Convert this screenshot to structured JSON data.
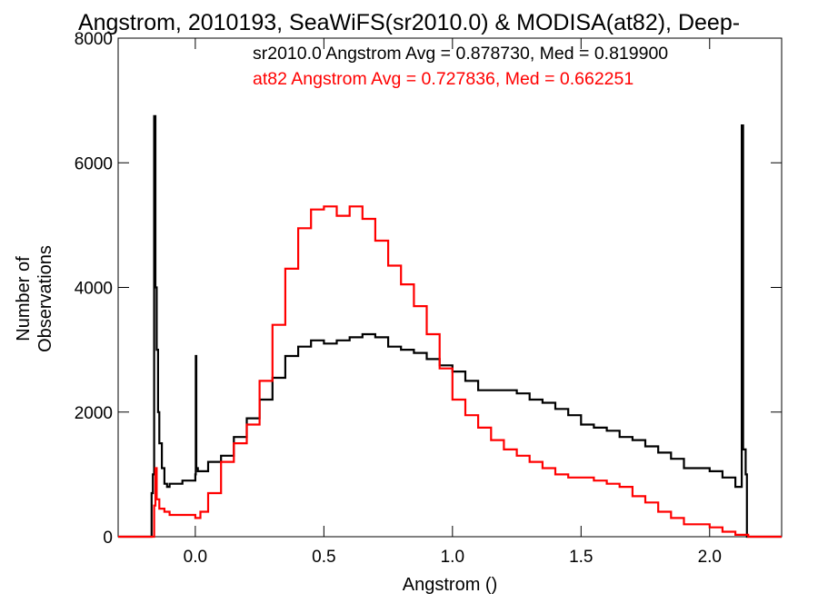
{
  "chart_data": {
    "type": "line",
    "title": "Angstrom, 2010193, SeaWiFS(sr2010.0) & MODISA(at82), Deep-",
    "xlabel": "Angstrom ()",
    "ylabel": "Number of Observations",
    "xlim": [
      -0.3,
      2.28
    ],
    "ylim": [
      0,
      8000
    ],
    "x_ticks": [
      0.0,
      0.5,
      1.0,
      1.5,
      2.0
    ],
    "x_tick_labels": [
      "0.0",
      "0.5",
      "1.0",
      "1.5",
      "2.0"
    ],
    "y_ticks": [
      0,
      2000,
      4000,
      6000,
      8000
    ],
    "y_tick_labels": [
      "0",
      "2000",
      "4000",
      "6000",
      "8000"
    ],
    "grid": false,
    "legend_placement": "top-right",
    "annotations": [
      {
        "text": "sr2010.0 Angstrom Avg = 0.878730, Med = 0.819900",
        "color": "#000000"
      },
      {
        "text": "at82 Angstrom Avg = 0.727836, Med = 0.662251",
        "color": "#ff0000"
      }
    ],
    "series": [
      {
        "color": "#000000",
        "x": [
          -0.3,
          -0.18,
          -0.17,
          -0.165,
          -0.16,
          -0.155,
          -0.15,
          -0.145,
          -0.14,
          -0.13,
          -0.12,
          -0.11,
          -0.1,
          -0.05,
          0.0,
          0.002,
          0.004,
          0.01,
          0.05,
          0.1,
          0.15,
          0.2,
          0.25,
          0.3,
          0.35,
          0.4,
          0.45,
          0.5,
          0.55,
          0.6,
          0.65,
          0.7,
          0.75,
          0.8,
          0.85,
          0.9,
          0.95,
          1.0,
          1.05,
          1.1,
          1.15,
          1.2,
          1.25,
          1.3,
          1.35,
          1.4,
          1.45,
          1.5,
          1.55,
          1.6,
          1.65,
          1.7,
          1.75,
          1.8,
          1.85,
          1.9,
          1.95,
          2.0,
          2.05,
          2.1,
          2.12,
          2.125,
          2.13,
          2.14,
          2.145,
          2.15,
          2.28
        ],
        "y": [
          0,
          0,
          700,
          1000,
          6750,
          4000,
          3000,
          2000,
          1500,
          1100,
          850,
          800,
          850,
          900,
          1000,
          2900,
          1100,
          1050,
          1200,
          1300,
          1600,
          1900,
          2200,
          2550,
          2900,
          3050,
          3150,
          3100,
          3150,
          3200,
          3250,
          3200,
          3050,
          3000,
          2950,
          2850,
          2750,
          2650,
          2500,
          2350,
          2350,
          2350,
          2300,
          2200,
          2150,
          2050,
          1950,
          1800,
          1750,
          1700,
          1600,
          1550,
          1450,
          1350,
          1250,
          1100,
          1100,
          1050,
          950,
          800,
          800,
          6600,
          1400,
          1000,
          0,
          0,
          0
        ]
      },
      {
        "color": "#ff0000",
        "x": [
          -0.3,
          -0.17,
          -0.16,
          -0.155,
          -0.15,
          -0.14,
          -0.12,
          -0.1,
          -0.05,
          0.0,
          0.02,
          0.05,
          0.1,
          0.15,
          0.2,
          0.25,
          0.3,
          0.35,
          0.4,
          0.45,
          0.5,
          0.55,
          0.6,
          0.65,
          0.7,
          0.75,
          0.8,
          0.85,
          0.9,
          0.95,
          1.0,
          1.05,
          1.1,
          1.15,
          1.2,
          1.25,
          1.3,
          1.35,
          1.4,
          1.45,
          1.5,
          1.55,
          1.6,
          1.65,
          1.7,
          1.75,
          1.8,
          1.85,
          1.9,
          1.95,
          2.0,
          2.05,
          2.1,
          2.15,
          2.28
        ],
        "y": [
          0,
          0,
          500,
          1100,
          600,
          450,
          400,
          350,
          350,
          300,
          400,
          700,
          1200,
          1500,
          1800,
          2500,
          3400,
          4300,
          4950,
          5250,
          5300,
          5150,
          5300,
          5100,
          4750,
          4350,
          4050,
          3700,
          3250,
          2700,
          2200,
          1950,
          1750,
          1550,
          1400,
          1300,
          1200,
          1100,
          1000,
          950,
          950,
          900,
          850,
          800,
          650,
          550,
          400,
          300,
          200,
          200,
          150,
          80,
          30,
          0,
          0
        ]
      }
    ]
  }
}
